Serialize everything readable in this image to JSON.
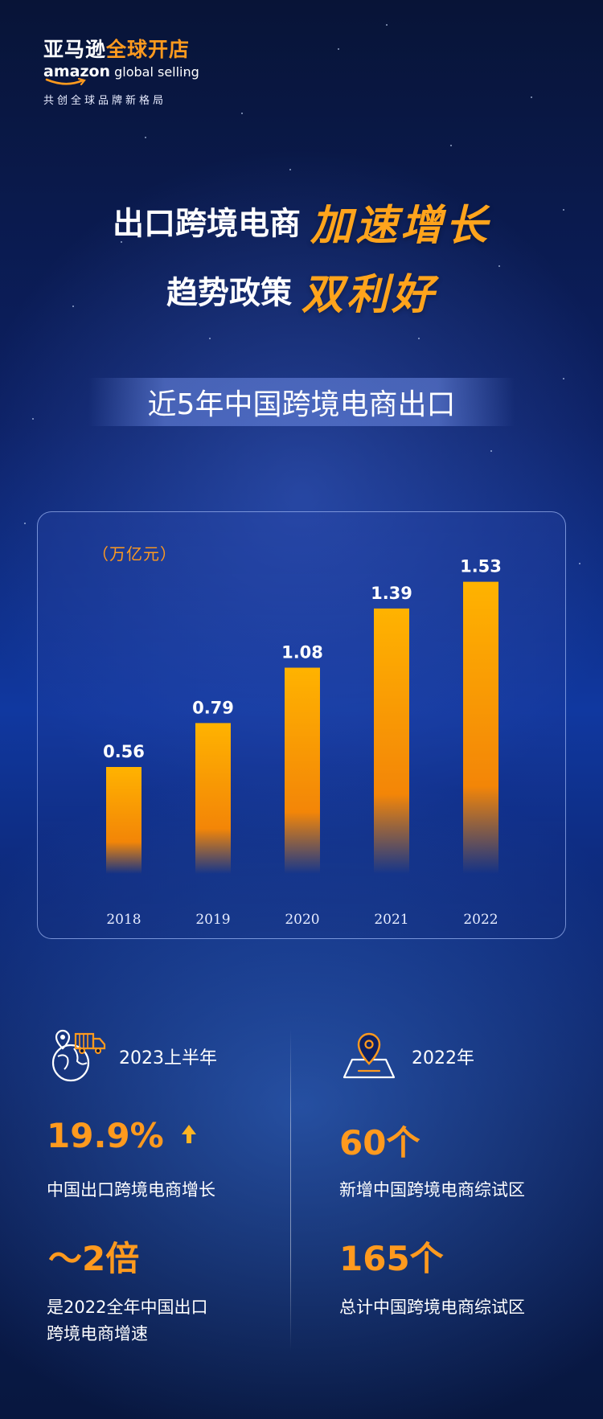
{
  "brand": {
    "name_cn_white": "亚马逊",
    "name_cn_orange": "全球开店",
    "name_en_amazon": "amazon",
    "name_en_rest": "global selling",
    "tagline": "共创全球品牌新格局"
  },
  "headline": {
    "line1_white": "出口跨境电商",
    "line1_orange": "加速增长",
    "line2_white": "趋势政策",
    "line2_orange": "双利好"
  },
  "subtitle": "近5年中国跨境电商出口",
  "chart_data": {
    "type": "bar",
    "categories": [
      "2018",
      "2019",
      "2020",
      "2021",
      "2022"
    ],
    "values": [
      0.56,
      0.79,
      1.08,
      1.39,
      1.53
    ],
    "value_labels": [
      "0.56",
      "0.79",
      "1.08",
      "1.39",
      "1.53"
    ],
    "ylabel": "（万亿元）",
    "ylim": [
      0,
      1.6
    ],
    "grid": false,
    "bar_color_top": "#ffb300",
    "bar_color_bottom": "#ff8a00"
  },
  "stats": {
    "left": {
      "period": "2023上半年",
      "metric1_value": "19.9%",
      "metric1_desc": "中国出口跨境电商增长",
      "metric2_value": "～2倍",
      "metric2_desc_line1": "是2022全年中国出口",
      "metric2_desc_line2": "跨境电商增速",
      "icon": "location-truck-globe-icon"
    },
    "right": {
      "period": "2022年",
      "metric1_value": "60个",
      "metric1_desc": "新增中国跨境电商综试区",
      "metric2_value": "165个",
      "metric2_desc": "总计中国跨境电商综试区",
      "icon": "map-pin-icon"
    }
  },
  "colors": {
    "accent": "#ff9a1e",
    "background": "#0c2064"
  }
}
